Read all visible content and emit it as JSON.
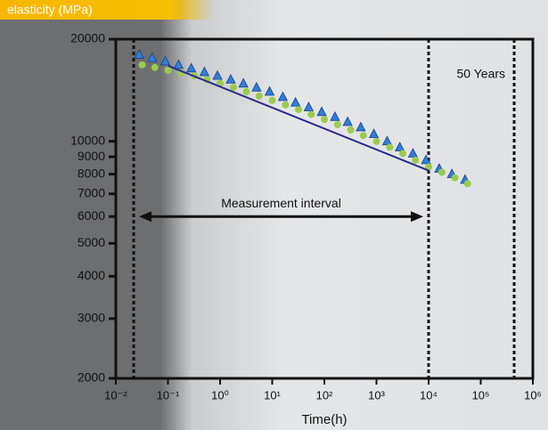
{
  "chart_data": {
    "type": "scatter",
    "title": "elasticity (MPa)",
    "x_label": "Time(h)",
    "xscale": "log",
    "yscale": "log",
    "xlim": [
      0.01,
      1000000
    ],
    "ylim": [
      2000,
      20000
    ],
    "xticks": [
      {
        "value": 0.01,
        "label": "10⁻²"
      },
      {
        "value": 0.1,
        "label": "10⁻¹"
      },
      {
        "value": 1,
        "label": "10⁰"
      },
      {
        "value": 10,
        "label": "10¹"
      },
      {
        "value": 100,
        "label": "10²"
      },
      {
        "value": 1000,
        "label": "10³"
      },
      {
        "value": 10000,
        "label": "10⁴"
      },
      {
        "value": 100000,
        "label": "10⁵"
      },
      {
        "value": 1000000,
        "label": "10⁶"
      }
    ],
    "yticks": [
      2000,
      3000,
      4000,
      5000,
      6000,
      7000,
      8000,
      9000,
      10000,
      20000
    ],
    "series": [
      {
        "marker": "triangle",
        "color": "#2f7fd8",
        "x": [
          0.028,
          0.05,
          0.089,
          0.16,
          0.28,
          0.5,
          0.89,
          1.6,
          2.8,
          5,
          8.9,
          16,
          28,
          50,
          89,
          160,
          280,
          500,
          890,
          1600,
          2800,
          5000,
          8900,
          16000,
          28000,
          50000
        ],
        "values": [
          18000,
          17600,
          17200,
          16800,
          16400,
          16000,
          15600,
          15200,
          14800,
          14400,
          14000,
          13500,
          13000,
          12600,
          12200,
          11800,
          11400,
          11000,
          10500,
          10000,
          9600,
          9200,
          8800,
          8300,
          8000,
          7700
        ]
      },
      {
        "marker": "circle",
        "color": "#9bcb4c",
        "x": [
          0.032,
          0.056,
          0.1,
          0.18,
          0.32,
          0.56,
          1,
          1.8,
          3.2,
          5.6,
          10,
          18,
          32,
          56,
          100,
          180,
          320,
          560,
          1000,
          1800,
          3200,
          5600,
          10000,
          18000,
          32000,
          56000
        ],
        "values": [
          16800,
          16500,
          16200,
          15900,
          15600,
          15200,
          14800,
          14400,
          14000,
          13600,
          13200,
          12800,
          12400,
          12000,
          11600,
          11200,
          10800,
          10400,
          10000,
          9600,
          9200,
          8800,
          8400,
          8100,
          7800,
          7500
        ]
      },
      {
        "marker": "line",
        "color": "#2a2a8c",
        "x": [
          0.1,
          10000
        ],
        "values": [
          16700,
          8200
        ]
      }
    ],
    "reference_lines": [
      0.022,
      10000,
      438000
    ],
    "interval": {
      "label": "Measurement interval",
      "x": [
        0.022,
        10000
      ],
      "y": 6000
    },
    "annotation": {
      "text": "50 Years",
      "x": 438000
    }
  }
}
